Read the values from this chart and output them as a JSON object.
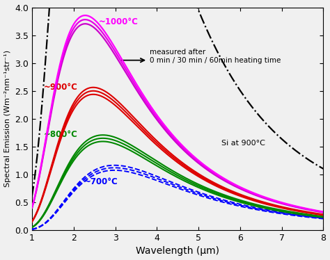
{
  "title": "",
  "xlabel": "Wavelength (μm)",
  "ylabel": "Spectral Emission (Wm⁻²nm⁻¹str⁻¹)",
  "xlim": [
    1,
    8
  ],
  "ylim": [
    0,
    4
  ],
  "yticks": [
    0,
    0.5,
    1.0,
    1.5,
    2.0,
    2.5,
    3.0,
    3.5,
    4.0
  ],
  "xticks": [
    1,
    2,
    3,
    4,
    5,
    6,
    7,
    8
  ],
  "color_700": "#0000ff",
  "color_800": "#008800",
  "color_900": "#dd0000",
  "color_1000_dark": "#cc00cc",
  "color_1000_mid": "#e600e6",
  "color_1000_bright": "#ff00ff",
  "label_700": "~700°C",
  "label_800": "~800°C",
  "label_900": "~900°C",
  "label_1000": "~1000°C",
  "label_Si": "Si at 900°C",
  "annotation_text": "measured after\n0 min / 30 min / 60min heating time",
  "background_color": "#f0f0f0"
}
